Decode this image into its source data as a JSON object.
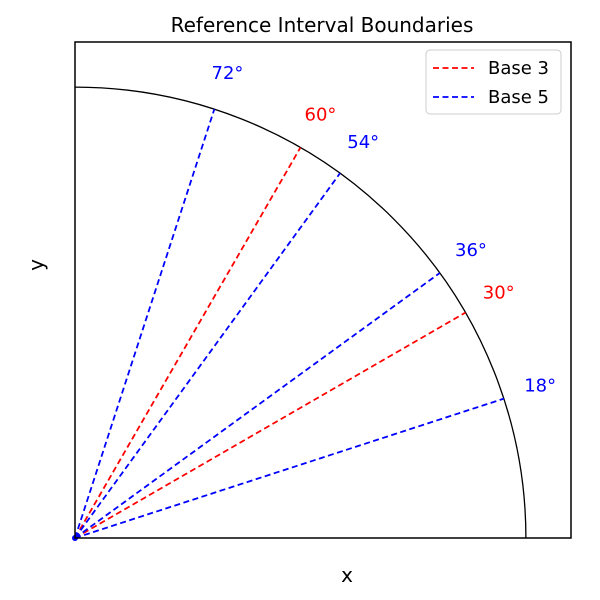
{
  "chart_data": {
    "type": "line",
    "title": "Reference Interval Boundaries",
    "xlabel": "x",
    "ylabel": "y",
    "xlim": [
      0,
      1.1
    ],
    "ylim": [
      0,
      1.1
    ],
    "grid": false,
    "legend_position": "top-right",
    "arc": {
      "radius": 1.0,
      "start_deg": 0,
      "end_deg": 90,
      "color": "#000000"
    },
    "series": [
      {
        "name": "Base 3",
        "color": "#ff0000",
        "style": "dashed",
        "angles": [
          30,
          60
        ],
        "labels": [
          "30°",
          "60°"
        ]
      },
      {
        "name": "Base 5",
        "color": "#0000ff",
        "style": "dashed",
        "angles": [
          18,
          36,
          54,
          72
        ],
        "labels": [
          "18°",
          "36°",
          "54°",
          "72°"
        ]
      }
    ]
  }
}
